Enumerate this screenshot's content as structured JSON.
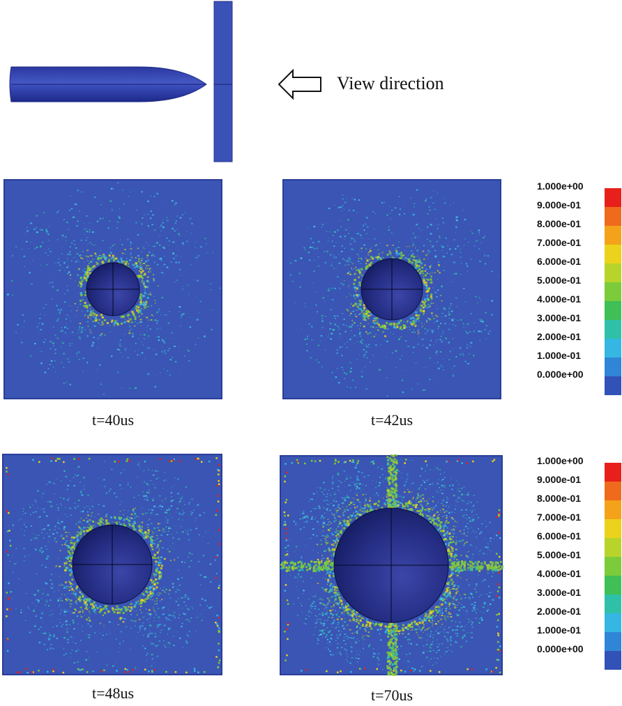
{
  "header": {
    "view_label": "View direction"
  },
  "panels": [
    {
      "id": "p40",
      "caption": "t=40us",
      "hole": "small"
    },
    {
      "id": "p42",
      "caption": "t=42us",
      "hole": "small"
    },
    {
      "id": "p48",
      "caption": "t=48us",
      "hole": "medium"
    },
    {
      "id": "p70",
      "caption": "t=70us",
      "hole": "large"
    }
  ],
  "legend": {
    "labels": [
      "1.000e+00",
      "9.000e-01",
      "8.000e-01",
      "7.000e-01",
      "6.000e-01",
      "5.000e-01",
      "4.000e-01",
      "3.000e-01",
      "2.000e-01",
      "1.000e-01",
      "0.000e+00"
    ],
    "colors": [
      "#e8201c",
      "#ef6a1c",
      "#f3a21a",
      "#ecd21a",
      "#b8d42a",
      "#7ccb3a",
      "#3fbf55",
      "#2ec1a8",
      "#35b6e3",
      "#2f86d6",
      "#3252b8"
    ]
  },
  "colors": {
    "plate": "#3a55b4",
    "sphere_dark": "#141a5e",
    "sphere_light": "#3b46a8",
    "projectile": "#3344a8"
  }
}
